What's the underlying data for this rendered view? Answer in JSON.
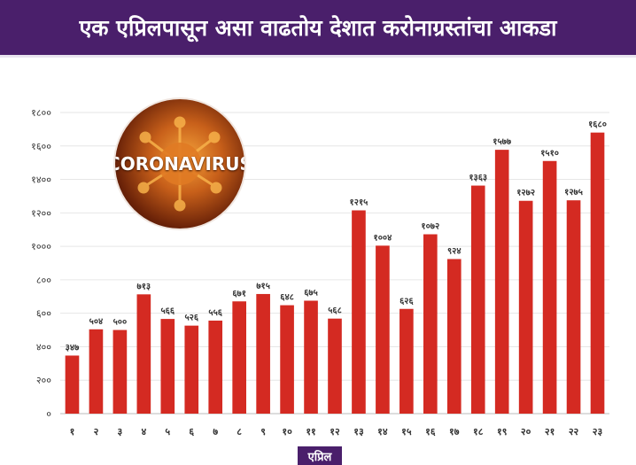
{
  "header": {
    "title": "एक एप्रिलपासून असा वाढतोय देशात करोनाग्रस्तांचा आकडा"
  },
  "badge": {
    "text": "CORONAVIRUS",
    "icon": "virus-icon"
  },
  "colors": {
    "header_bg": "#4a1f6b",
    "bar": "#d42a22",
    "axis_text": "#333333",
    "grid": "#e6e6e6"
  },
  "chart_data": {
    "type": "bar",
    "xlabel": "एप्रिल",
    "ylabel": "",
    "ylim": [
      0,
      1800
    ],
    "yticks": [
      "०",
      "२००",
      "४००",
      "६००",
      "८००",
      "१०००",
      "१२००",
      "१४००",
      "१६००",
      "१८००"
    ],
    "ytick_values": [
      0,
      200,
      400,
      600,
      800,
      1000,
      1200,
      1400,
      1600,
      1800
    ],
    "categories": [
      "१",
      "२",
      "३",
      "४",
      "५",
      "६",
      "७",
      "८",
      "९",
      "१०",
      "११",
      "१२",
      "१३",
      "१४",
      "१५",
      "१६",
      "१७",
      "१८",
      "१९",
      "२०",
      "२१",
      "२२",
      "२३"
    ],
    "values": [
      347,
      504,
      500,
      713,
      566,
      526,
      556,
      671,
      715,
      648,
      675,
      568,
      1215,
      1004,
      626,
      1072,
      924,
      1363,
      1577,
      1272,
      1510,
      1275,
      1680
    ],
    "value_labels": [
      "३४७",
      "५०४",
      "५००",
      "७१३",
      "५६६",
      "५२६",
      "५५६",
      "६७१",
      "७१५",
      "६४८",
      "६७५",
      "५६८",
      "१२१५",
      "१००४",
      "६२६",
      "१०७२",
      "९२४",
      "१३६३",
      "१५७७",
      "१२७२",
      "१५१०",
      "१२७५",
      "१६८०"
    ],
    "grid": true,
    "legend": "none"
  }
}
